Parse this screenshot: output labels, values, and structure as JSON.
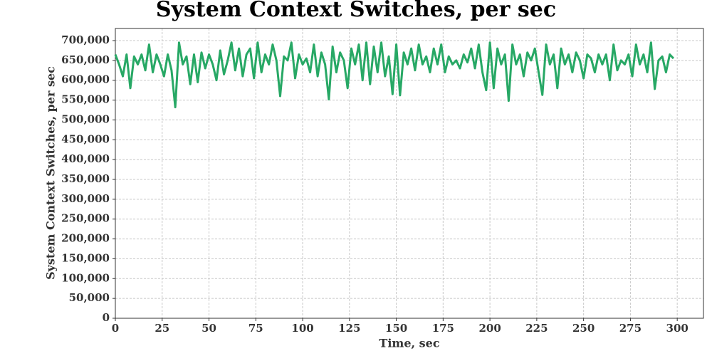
{
  "chart_data": {
    "type": "line",
    "title": "System Context Switches, per sec",
    "x_label": "Time, sec",
    "y_label": "System Context Switches, per sec",
    "x": [
      0,
      2,
      4,
      6,
      8,
      10,
      12,
      14,
      16,
      18,
      20,
      22,
      24,
      26,
      28,
      30,
      32,
      34,
      36,
      38,
      40,
      42,
      44,
      46,
      48,
      50,
      52,
      54,
      56,
      58,
      60,
      62,
      64,
      66,
      68,
      70,
      72,
      74,
      76,
      78,
      80,
      82,
      84,
      86,
      88,
      90,
      92,
      94,
      96,
      98,
      100,
      102,
      104,
      106,
      108,
      110,
      112,
      114,
      116,
      118,
      120,
      122,
      124,
      126,
      128,
      130,
      132,
      134,
      136,
      138,
      140,
      142,
      144,
      146,
      148,
      150,
      152,
      154,
      156,
      158,
      160,
      162,
      164,
      166,
      168,
      170,
      172,
      174,
      176,
      178,
      180,
      182,
      184,
      186,
      188,
      190,
      192,
      194,
      196,
      198,
      200,
      202,
      204,
      206,
      208,
      210,
      212,
      214,
      216,
      218,
      220,
      222,
      224,
      226,
      228,
      230,
      232,
      234,
      236,
      238,
      240,
      242,
      244,
      246,
      248,
      250,
      252,
      254,
      256,
      258,
      260,
      262,
      264,
      266,
      268,
      270,
      272,
      274,
      276,
      278,
      280,
      282,
      284,
      286,
      288,
      290,
      292,
      294,
      296,
      298
    ],
    "series": [
      {
        "name": "System Context Switches, per sec",
        "color": "#27a865",
        "values": [
          665000,
          640000,
          610000,
          665000,
          580000,
          660000,
          640000,
          665000,
          625000,
          690000,
          620000,
          665000,
          640000,
          610000,
          665000,
          625000,
          532000,
          695000,
          640000,
          660000,
          590000,
          665000,
          595000,
          670000,
          630000,
          665000,
          640000,
          600000,
          675000,
          615000,
          650000,
          695000,
          625000,
          680000,
          610000,
          665000,
          680000,
          605000,
          695000,
          620000,
          665000,
          640000,
          690000,
          650000,
          560000,
          660000,
          650000,
          695000,
          605000,
          665000,
          640000,
          655000,
          620000,
          690000,
          610000,
          670000,
          640000,
          552000,
          685000,
          620000,
          670000,
          650000,
          580000,
          680000,
          640000,
          690000,
          600000,
          695000,
          590000,
          685000,
          620000,
          695000,
          610000,
          660000,
          565000,
          690000,
          562000,
          670000,
          640000,
          680000,
          625000,
          690000,
          640000,
          660000,
          620000,
          680000,
          640000,
          690000,
          620000,
          660000,
          640000,
          650000,
          630000,
          665000,
          645000,
          680000,
          630000,
          690000,
          620000,
          575000,
          695000,
          580000,
          680000,
          640000,
          665000,
          548000,
          690000,
          640000,
          665000,
          610000,
          670000,
          650000,
          680000,
          620000,
          563000,
          690000,
          640000,
          665000,
          580000,
          680000,
          640000,
          665000,
          620000,
          670000,
          650000,
          605000,
          665000,
          655000,
          620000,
          665000,
          640000,
          665000,
          600000,
          690000,
          625000,
          650000,
          640000,
          665000,
          610000,
          690000,
          640000,
          665000,
          620000,
          695000,
          578000,
          650000,
          660000,
          620000,
          665000,
          655000
        ]
      }
    ],
    "xlim": [
      0,
      314
    ],
    "xticks": [
      0,
      25,
      50,
      75,
      100,
      125,
      150,
      175,
      200,
      225,
      250,
      275,
      300
    ],
    "ylim": [
      0,
      730500
    ],
    "yticks": [
      0,
      {
        "value": 50000,
        "label": "50,000"
      },
      {
        "value": 100000,
        "label": "100,000"
      },
      {
        "value": 150000,
        "label": "150,000"
      },
      {
        "value": 200000,
        "label": "200,000"
      },
      {
        "value": 250000,
        "label": "250,000"
      },
      {
        "value": 300000,
        "label": "300,000"
      },
      {
        "value": 350000,
        "label": "350,000"
      },
      {
        "value": 400000,
        "label": "400,000"
      },
      {
        "value": 450000,
        "label": "450,000"
      },
      {
        "value": 500000,
        "label": "500,000"
      },
      {
        "value": 550000,
        "label": "550,000"
      },
      {
        "value": 600000,
        "label": "600,000"
      },
      {
        "value": 650000,
        "label": "650,000"
      },
      {
        "value": 700000,
        "label": "700,000"
      }
    ],
    "grid": true
  }
}
